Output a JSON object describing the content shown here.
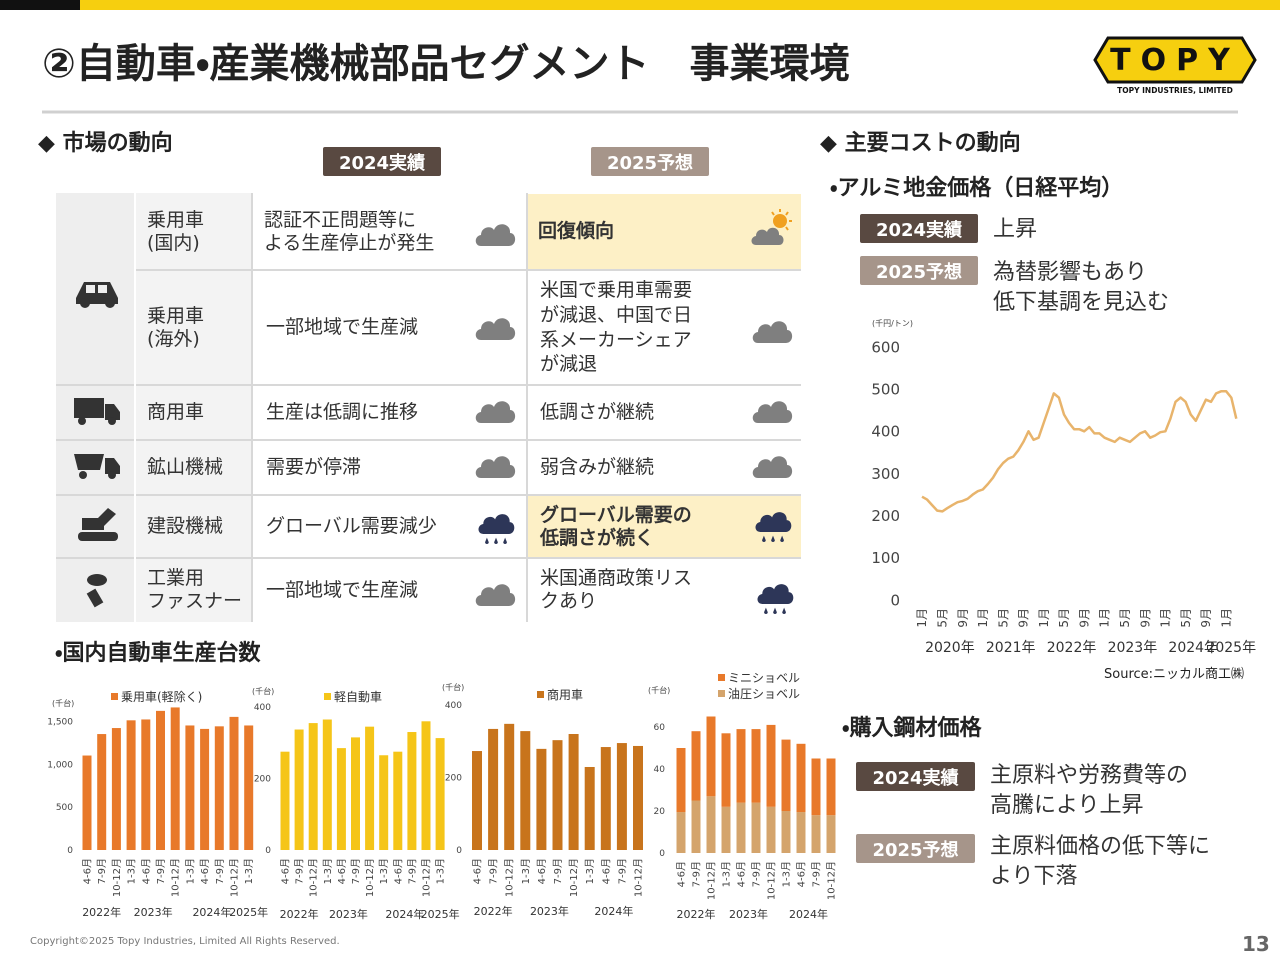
{
  "header": {
    "title": "②自動車・産業機械部品セグメント　事業環境",
    "logo": "TOPY",
    "logo_sub": "TOPY INDUSTRIES, LIMITED"
  },
  "market": {
    "heading": "◆ 市場の動向",
    "col_2024": "2024実績",
    "col_2025": "2025予想",
    "rows": [
      {
        "category": "乗用車\n(国内)",
        "y2024": "認証不正問題等に\nよる生産停止が発生",
        "y2025": "回復傾向"
      },
      {
        "category": "乗用車\n(海外)",
        "y2024": "一部地域で生産減",
        "y2025": "米国で乗用車需要\nが減退、中国で日\n系メーカーシェア\nが減退"
      },
      {
        "category": "商用車",
        "y2024": "生産は低調に推移",
        "y2025": "低調さが継続"
      },
      {
        "category": "鉱山機械",
        "y2024": "需要が停滞",
        "y2025": "弱含みが継続"
      },
      {
        "category": "建設機械",
        "y2024": "グローバル需要減少",
        "y2025": "グローバル需要の\n低調さが続く"
      },
      {
        "category": "工業用\nファスナー",
        "y2024": "一部地域で生産減",
        "y2025": "米国通商政策リス\nクあり"
      }
    ]
  },
  "costs": {
    "heading": "◆ 主要コストの動向",
    "aluminum": {
      "title": "・アルミ地金価格（日経平均）",
      "tag_2024": "2024実績",
      "text_2024": "上昇",
      "tag_2025": "2025予想",
      "text_2025": "為替影響もあり\n低下基調を見込む",
      "source": "Source:ニッカル商工㈱"
    },
    "steel": {
      "title": "・購入鋼材価格",
      "tag_2024": "2024実績",
      "text_2024": "主原料や労務費等の\n高騰により上昇",
      "tag_2025": "2025予想",
      "text_2025": "主原料価格の低下等に\nより下落"
    }
  },
  "production_title": "・国内自動車生産台数",
  "footer": {
    "copyright": "Copyright©2025 Topy Industries, Limited All Rights Reserved.",
    "page": "13"
  },
  "chart_data": [
    {
      "type": "line",
      "y_label": "(千円/トン)",
      "color": "#e8b46c",
      "categories": [
        "1月",
        null,
        null,
        null,
        "5月",
        null,
        null,
        null,
        "9月",
        null,
        null,
        null,
        "1月",
        null,
        null,
        null,
        "5月",
        null,
        null,
        null,
        "9月",
        null,
        null,
        null,
        "1月",
        null,
        null,
        null,
        "5月",
        null,
        null,
        null,
        "9月",
        null,
        null,
        null,
        "1月",
        null,
        null,
        null,
        "5月",
        null,
        null,
        null,
        "9月",
        null,
        null,
        null,
        "1月",
        null,
        null,
        null,
        "5月",
        null,
        null,
        null,
        "9月",
        null,
        null,
        null,
        "1月",
        null,
        null
      ],
      "years": [
        "2020年",
        null,
        null,
        null,
        null,
        null,
        null,
        null,
        null,
        null,
        null,
        null,
        "2021年",
        null,
        null,
        null,
        null,
        null,
        null,
        null,
        null,
        null,
        null,
        null,
        "2022年",
        null,
        null,
        null,
        null,
        null,
        null,
        null,
        null,
        null,
        null,
        null,
        "2023年",
        null,
        null,
        null,
        null,
        null,
        null,
        null,
        null,
        null,
        null,
        null,
        "2024年",
        null,
        null,
        null,
        null,
        null,
        null,
        null,
        null,
        null,
        null,
        null,
        "2025年",
        null,
        null
      ],
      "values": [
        245,
        238,
        225,
        212,
        210,
        218,
        225,
        232,
        235,
        240,
        250,
        258,
        262,
        275,
        290,
        310,
        325,
        335,
        340,
        355,
        375,
        400,
        380,
        385,
        420,
        455,
        490,
        480,
        440,
        420,
        405,
        405,
        400,
        410,
        395,
        395,
        385,
        380,
        375,
        385,
        380,
        375,
        385,
        395,
        400,
        385,
        390,
        398,
        400,
        430,
        470,
        480,
        470,
        440,
        425,
        450,
        475,
        470,
        490,
        495,
        495,
        480,
        430
      ],
      "ylim": [
        0,
        600
      ],
      "yticks": [
        0,
        100,
        200,
        300,
        400,
        500,
        600
      ],
      "grid": false
    },
    {
      "type": "bar",
      "y_label": "(千台)",
      "legend": "乗用車(軽除く)",
      "color": "#e8792a",
      "categories": [
        "4-6月",
        "7-9月",
        "10-12月",
        "1-3月",
        "4-6月",
        "7-9月",
        "10-12月",
        "1-3月",
        "4-6月",
        "7-9月",
        "10-12月",
        "1-3月"
      ],
      "years": [
        "2022年",
        null,
        null,
        "2023年",
        null,
        null,
        null,
        "2024年",
        null,
        null,
        null,
        "2025年"
      ],
      "values": [
        1100,
        1350,
        1420,
        1510,
        1520,
        1620,
        1660,
        1450,
        1410,
        1440,
        1550,
        1450
      ],
      "ylim": [
        0,
        1700
      ],
      "yticks": [
        0,
        500,
        {
          "value": 1000,
          "label": "1,000"
        },
        {
          "value": 1500,
          "label": "1,500"
        }
      ]
    },
    {
      "type": "bar",
      "y_label": "(千台)",
      "legend": "軽自動車",
      "color": "#f5c518",
      "categories": [
        "4-6月",
        "7-9月",
        "10-12月",
        "1-3月",
        "4-6月",
        "7-9月",
        "10-12月",
        "1-3月",
        "4-6月",
        "7-9月",
        "10-12月",
        "1-3月"
      ],
      "years": [
        "2022年",
        null,
        null,
        "2023年",
        null,
        null,
        null,
        "2024年",
        null,
        null,
        null,
        "2025年"
      ],
      "values": [
        275,
        337,
        355,
        365,
        285,
        315,
        345,
        265,
        275,
        330,
        360,
        313
      ],
      "ylim": [
        0,
        400
      ],
      "yticks": [
        0,
        200,
        400
      ]
    },
    {
      "type": "bar",
      "y_label": "(千台)",
      "legend": "商用車",
      "color": "#c8741c",
      "categories": [
        "4-6月",
        "7-9月",
        "10-12月",
        "1-3月",
        "4-6月",
        "7-9月",
        "10-12月",
        "1-3月",
        "4-6月",
        "7-9月",
        "10-12月"
      ],
      "years": [
        "2022年",
        null,
        null,
        "2023年",
        null,
        null,
        null,
        "2024年",
        null,
        null,
        null
      ],
      "values": [
        273,
        334,
        348,
        328,
        279,
        303,
        320,
        229,
        284,
        295,
        287
      ],
      "ylim": [
        0,
        400
      ],
      "yticks": [
        0,
        200,
        400
      ]
    },
    {
      "type": "stacked_bar",
      "y_label": "(千台)",
      "categories": [
        "4-6月",
        "7-9月",
        "10-12月",
        "1-3月",
        "4-6月",
        "7-9月",
        "10-12月",
        "1-3月",
        "4-6月",
        "7-9月",
        "10-12月"
      ],
      "years": [
        "2022年",
        null,
        null,
        "2023年",
        null,
        null,
        null,
        "2024年",
        null,
        null,
        null
      ],
      "series": [
        {
          "name": "ミニショベル",
          "color": "#e8792a",
          "values": [
            30.5,
            33,
            38,
            35,
            35,
            35,
            39,
            34,
            32.5,
            27,
            27
          ]
        },
        {
          "name": "油圧ショベル",
          "color": "#d4a46c",
          "values": [
            19.5,
            25,
            27,
            22,
            24,
            24,
            22,
            20,
            19.5,
            18,
            18
          ]
        }
      ],
      "ylim": [
        0,
        70
      ],
      "yticks": [
        0,
        20,
        40,
        60
      ]
    }
  ]
}
